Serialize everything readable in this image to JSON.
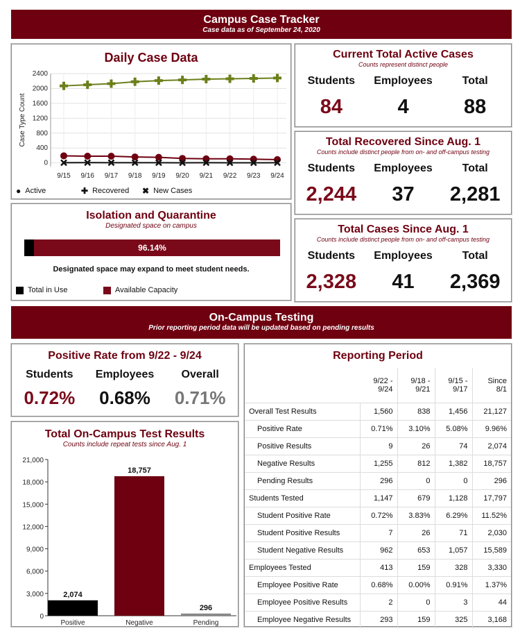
{
  "header": {
    "title": "Campus Case Tracker",
    "subtitle": "Case data as of September 24, 2020"
  },
  "daily": {
    "title": "Daily Case Data",
    "legend": {
      "active": "Active",
      "recovered": "Recovered",
      "new_cases": "New Cases"
    }
  },
  "active": {
    "title": "Current Total Active Cases",
    "note": "Counts represent distinct people",
    "labels": {
      "students": "Students",
      "employees": "Employees",
      "total": "Total"
    },
    "values": {
      "students": "84",
      "employees": "4",
      "total": "88"
    }
  },
  "recovered": {
    "title": "Total Recovered Since Aug. 1",
    "note": "Counts include distinct people from on- and off-campus testing",
    "labels": {
      "students": "Students",
      "employees": "Employees",
      "total": "Total"
    },
    "values": {
      "students": "2,244",
      "employees": "37",
      "total": "2,281"
    }
  },
  "total_cases": {
    "title": "Total Cases Since Aug. 1",
    "note": "Counts include distinct people from on- and off-campus testing",
    "labels": {
      "students": "Students",
      "employees": "Employees",
      "total": "Total"
    },
    "values": {
      "students": "2,328",
      "employees": "41",
      "total": "2,369"
    }
  },
  "isolation": {
    "title": "Isolation and Quarantine",
    "note": "Designated space on campus",
    "percent_label": "96.14%",
    "available_fraction": 0.9614,
    "message": "Designated space may expand to meet student needs.",
    "legend": {
      "in_use": "Total in Use",
      "available": "Available Capacity"
    }
  },
  "testing_banner": {
    "title": "On-Campus Testing",
    "subtitle": "Prior reporting period data will be updated based on pending results"
  },
  "positive_rate": {
    "title": "Positive Rate from 9/22 - 9/24",
    "labels": {
      "students": "Students",
      "employees": "Employees",
      "overall": "Overall"
    },
    "values": {
      "students": "0.72%",
      "employees": "0.68%",
      "overall": "0.71%"
    }
  },
  "test_results": {
    "title": "Total On-Campus Test Results",
    "note": "Counts include repeat tests since Aug. 1"
  },
  "reporting": {
    "title": "Reporting Period",
    "columns": [
      "9/22 -\n9/24",
      "9/18 -\n9/21",
      "9/15 -\n9/17",
      "Since\n8/1"
    ],
    "rows": [
      {
        "label": "Overall Test Results",
        "indent": false,
        "values": [
          "1,560",
          "838",
          "1,456",
          "21,127"
        ]
      },
      {
        "label": "Positive Rate",
        "indent": true,
        "values": [
          "0.71%",
          "3.10%",
          "5.08%",
          "9.96%"
        ]
      },
      {
        "label": "Positive Results",
        "indent": true,
        "values": [
          "9",
          "26",
          "74",
          "2,074"
        ]
      },
      {
        "label": "Negative Results",
        "indent": true,
        "values": [
          "1,255",
          "812",
          "1,382",
          "18,757"
        ]
      },
      {
        "label": "Pending Results",
        "indent": true,
        "values": [
          "296",
          "0",
          "0",
          "296"
        ]
      },
      {
        "label": "Students Tested",
        "indent": false,
        "values": [
          "1,147",
          "679",
          "1,128",
          "17,797"
        ]
      },
      {
        "label": "Student Positive Rate",
        "indent": true,
        "values": [
          "0.72%",
          "3.83%",
          "6.29%",
          "11.52%"
        ]
      },
      {
        "label": "Student Positive Results",
        "indent": true,
        "values": [
          "7",
          "26",
          "71",
          "2,030"
        ]
      },
      {
        "label": "Student Negative Results",
        "indent": true,
        "values": [
          "962",
          "653",
          "1,057",
          "15,589"
        ]
      },
      {
        "label": "Employees Tested",
        "indent": false,
        "values": [
          "413",
          "159",
          "328",
          "3,330"
        ]
      },
      {
        "label": "Employee Positive Rate",
        "indent": true,
        "values": [
          "0.68%",
          "0.00%",
          "0.91%",
          "1.37%"
        ]
      },
      {
        "label": "Employee Positive Results",
        "indent": true,
        "values": [
          "2",
          "0",
          "3",
          "44"
        ]
      },
      {
        "label": "Employee Negative Results",
        "indent": true,
        "values": [
          "293",
          "159",
          "325",
          "3,168"
        ]
      }
    ]
  },
  "colors": {
    "maroon": "#6e0010",
    "olive": "#6b7f1a",
    "dark": "#111111",
    "gray": "#777777"
  },
  "chart_data": [
    {
      "type": "line",
      "title": "Daily Case Data",
      "ylabel": "Case Type Count",
      "x": [
        "9/15",
        "9/16",
        "9/17",
        "9/18",
        "9/19",
        "9/20",
        "9/21",
        "9/22",
        "9/23",
        "9/24"
      ],
      "ylim": [
        -100,
        2400
      ],
      "yticks": [
        0,
        400,
        800,
        1200,
        1600,
        2000,
        2400
      ],
      "grid": true,
      "legend": "bottom",
      "series": [
        {
          "name": "Active",
          "values": [
            190,
            180,
            180,
            160,
            150,
            120,
            110,
            110,
            100,
            88
          ]
        },
        {
          "name": "Recovered",
          "values": [
            2070,
            2100,
            2130,
            2180,
            2210,
            2230,
            2250,
            2260,
            2270,
            2281
          ]
        },
        {
          "name": "New Cases",
          "values": [
            5,
            8,
            6,
            5,
            4,
            3,
            4,
            3,
            3,
            4
          ]
        }
      ]
    },
    {
      "type": "bar",
      "title": "Total On-Campus Test Results",
      "categories": [
        "Positive",
        "Negative",
        "Pending"
      ],
      "values": [
        2074,
        18757,
        296
      ],
      "value_labels": [
        "2,074",
        "18,757",
        "296"
      ],
      "ylim": [
        0,
        21000
      ],
      "yticks": [
        0,
        3000,
        6000,
        9000,
        12000,
        15000,
        18000,
        21000
      ],
      "ytick_labels": [
        "0",
        "3,000",
        "6,000",
        "9,000",
        "12,000",
        "15,000",
        "18,000",
        "21,000"
      ]
    }
  ]
}
